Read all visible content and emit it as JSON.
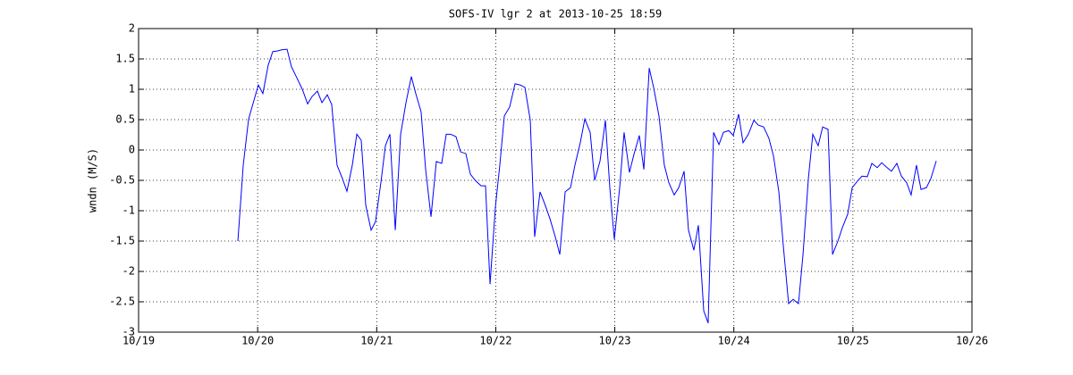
{
  "chart_data": {
    "type": "line",
    "title": "SOFS-IV lgr 2 at 2013-10-25 18:59",
    "y_label": "wndn (M/S)",
    "xlim": [
      19,
      26
    ],
    "xticks": [
      {
        "value": 19,
        "label": "10/19"
      },
      {
        "value": 20,
        "label": "10/20"
      },
      {
        "value": 21,
        "label": "10/21"
      },
      {
        "value": 22,
        "label": "10/22"
      },
      {
        "value": 23,
        "label": "10/23"
      },
      {
        "value": 24,
        "label": "10/24"
      },
      {
        "value": 25,
        "label": "10/25"
      },
      {
        "value": 26,
        "label": "10/26"
      }
    ],
    "ylim": [
      -3,
      2
    ],
    "yticks": [
      -3,
      -2.5,
      -2,
      -1.5,
      -1,
      -0.5,
      0,
      0.5,
      1,
      1.5,
      2
    ],
    "grid": true,
    "series": [
      {
        "color": "#0000ff",
        "x": [
          19.834,
          19.879,
          19.924,
          20.006,
          20.044,
          20.089,
          20.127,
          20.164,
          20.202,
          20.247,
          20.284,
          20.329,
          20.375,
          20.42,
          20.457,
          20.502,
          20.54,
          20.585,
          20.622,
          20.667,
          20.712,
          20.75,
          20.795,
          20.833,
          20.87,
          20.908,
          20.953,
          20.99,
          21.035,
          21.073,
          21.111,
          21.156,
          21.201,
          21.246,
          21.291,
          21.328,
          21.373,
          21.411,
          21.456,
          21.501,
          21.546,
          21.584,
          21.621,
          21.666,
          21.704,
          21.749,
          21.787,
          21.832,
          21.877,
          21.914,
          21.952,
          21.997,
          22.034,
          22.072,
          22.117,
          22.162,
          22.207,
          22.245,
          22.29,
          22.327,
          22.372,
          22.41,
          22.455,
          22.5,
          22.538,
          22.583,
          22.628,
          22.665,
          22.71,
          22.748,
          22.793,
          22.831,
          22.876,
          22.921,
          22.958,
          22.996,
          23.041,
          23.078,
          23.123,
          23.161,
          23.206,
          23.244,
          23.289,
          23.326,
          23.371,
          23.416,
          23.454,
          23.499,
          23.537,
          23.582,
          23.619,
          23.664,
          23.702,
          23.747,
          23.784,
          23.83,
          23.875,
          23.912,
          23.957,
          23.995,
          24.04,
          24.077,
          24.122,
          24.168,
          24.205,
          24.25,
          24.295,
          24.333,
          24.378,
          24.415,
          24.46,
          24.498,
          24.543,
          24.581,
          24.626,
          24.663,
          24.708,
          24.746,
          24.791,
          24.829,
          24.874,
          24.911,
          24.956,
          24.994,
          25.039,
          25.076,
          25.121,
          25.159,
          25.204,
          25.242,
          25.287,
          25.324,
          25.369,
          25.407,
          25.452,
          25.489,
          25.534,
          25.572,
          25.617,
          25.655,
          25.7
        ],
        "values": [
          -1.5,
          -0.25,
          0.51,
          1.07,
          0.93,
          1.4,
          1.62,
          1.63,
          1.65,
          1.66,
          1.37,
          1.19,
          1.0,
          0.76,
          0.88,
          0.97,
          0.78,
          0.91,
          0.75,
          -0.25,
          -0.47,
          -0.68,
          -0.25,
          0.26,
          0.16,
          -0.91,
          -1.32,
          -1.18,
          -0.54,
          0.07,
          0.26,
          -1.32,
          0.26,
          0.78,
          1.21,
          0.93,
          0.63,
          -0.32,
          -1.1,
          -0.19,
          -0.22,
          0.26,
          0.26,
          0.22,
          -0.03,
          -0.06,
          -0.4,
          -0.51,
          -0.59,
          -0.59,
          -2.21,
          -0.94,
          -0.25,
          0.56,
          0.71,
          1.09,
          1.07,
          1.03,
          0.49,
          -1.43,
          -0.69,
          -0.88,
          -1.13,
          -1.43,
          -1.72,
          -0.69,
          -0.62,
          -0.25,
          0.12,
          0.51,
          0.29,
          -0.5,
          -0.18,
          0.49,
          -0.62,
          -1.47,
          -0.62,
          0.29,
          -0.37,
          -0.07,
          0.24,
          -0.32,
          1.35,
          1.03,
          0.56,
          -0.25,
          -0.54,
          -0.74,
          -0.62,
          -0.35,
          -1.32,
          -1.65,
          -1.24,
          -2.65,
          -2.85,
          0.29,
          0.09,
          0.29,
          0.32,
          0.24,
          0.59,
          0.12,
          0.26,
          0.49,
          0.41,
          0.38,
          0.19,
          -0.1,
          -0.69,
          -1.57,
          -2.53,
          -2.46,
          -2.53,
          -1.72,
          -0.47,
          0.26,
          0.07,
          0.38,
          0.34,
          -1.72,
          -1.5,
          -1.28,
          -1.06,
          -0.62,
          -0.51,
          -0.43,
          -0.44,
          -0.22,
          -0.29,
          -0.21,
          -0.29,
          -0.35,
          -0.22,
          -0.43,
          -0.54,
          -0.74,
          -0.25,
          -0.65,
          -0.62,
          -0.47,
          -0.18
        ]
      }
    ]
  }
}
